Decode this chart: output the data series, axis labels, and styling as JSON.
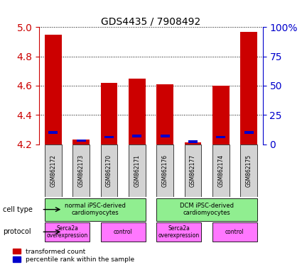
{
  "title": "GDS4435 / 7908492",
  "samples": [
    "GSM862172",
    "GSM862173",
    "GSM862170",
    "GSM862171",
    "GSM862176",
    "GSM862177",
    "GSM862174",
    "GSM862175"
  ],
  "red_values": [
    4.95,
    4.23,
    4.62,
    4.65,
    4.61,
    4.21,
    4.6,
    4.97
  ],
  "blue_values": [
    0.1,
    0.03,
    0.06,
    0.07,
    0.07,
    0.02,
    0.06,
    0.1
  ],
  "ylim_left": [
    4.2,
    5.0
  ],
  "ylim_right": [
    0,
    100
  ],
  "yticks_left": [
    4.2,
    4.4,
    4.6,
    4.8,
    5.0
  ],
  "yticks_right": [
    0,
    25,
    50,
    75,
    100
  ],
  "ytick_labels_right": [
    "0",
    "25",
    "50",
    "75",
    "100%"
  ],
  "bar_width": 0.6,
  "bar_color_red": "#CC0000",
  "bar_color_blue": "#0000CC",
  "left_axis_color": "#CC0000",
  "right_axis_color": "#0000CC",
  "legend_red_label": "transformed count",
  "legend_blue_label": "percentile rank within the sample",
  "cell_type_label": "cell type",
  "protocol_label": "protocol",
  "sample_bg": "#D3D3D3",
  "cell_type_bg": "#90EE90",
  "protocol_bg_serca": "#FF77FF",
  "protocol_bg_control": "#FF77FF"
}
